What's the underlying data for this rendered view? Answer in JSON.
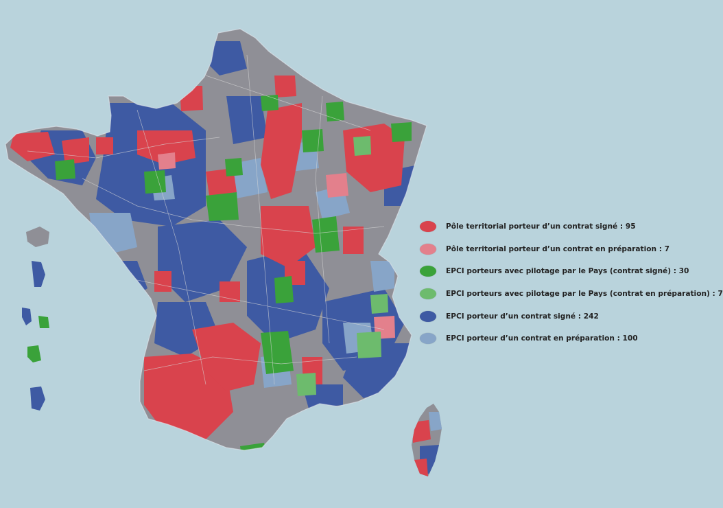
{
  "colors": {
    "sea": "#b9d3dc",
    "grey": "#8f8f96",
    "red": "#d9434d",
    "pink": "#e3808c",
    "green": "#3aa23a",
    "light_green": "#6dbb6d",
    "blue": "#3e5aa3",
    "light_blue": "#87a5c8"
  },
  "legend": {
    "items": [
      {
        "label": "Pôle territorial porteur d’un contrat signé : 95",
        "color": "#d9434d"
      },
      {
        "label": "Pôle territorial porteur d’un contrat en préparation : 7",
        "color": "#e3808c"
      },
      {
        "label": "EPCI porteurs avec pilotage par le Pays (contrat signé) : 30",
        "color": "#3aa23a"
      },
      {
        "label": "EPCI porteurs avec pilotage par le Pays (contrat en préparation) : 7",
        "color": "#6dbb6d"
      },
      {
        "label": "EPCI porteur d’un contrat signé : 242",
        "color": "#3e5aa3"
      },
      {
        "label": "EPCI porteur d’un contrat en préparation : 100",
        "color": "#87a5c8"
      }
    ]
  }
}
